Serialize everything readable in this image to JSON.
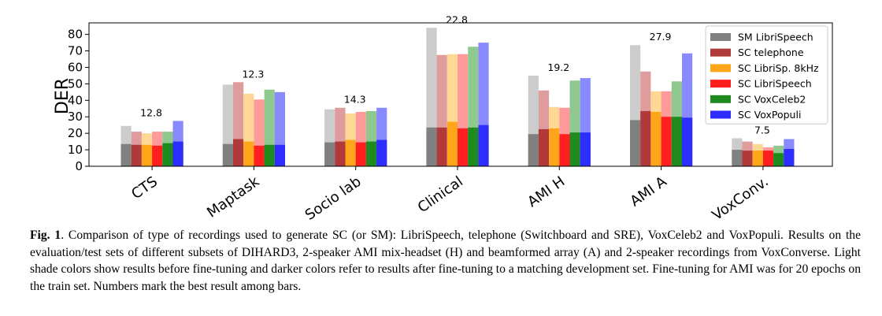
{
  "chart_data": {
    "type": "bar",
    "ylabel": "DER",
    "ylim": [
      0,
      87
    ],
    "yticks": [
      0,
      10,
      20,
      30,
      40,
      50,
      60,
      70,
      80
    ],
    "grid": false,
    "legend_position": "top-right",
    "categories": [
      "CTS",
      "Maptask",
      "Socio lab",
      "Clinical",
      "AMI H",
      "AMI A",
      "VoxConv."
    ],
    "series": [
      {
        "name": "SM LibriSpeech",
        "color": "#808080",
        "light_color": "#cccccc",
        "before": [
          24.5,
          49.5,
          34.5,
          84,
          55,
          73.5,
          17
        ],
        "after": [
          13.5,
          13.5,
          14.5,
          23.5,
          19.5,
          28,
          10
        ]
      },
      {
        "name": "SC telephone",
        "color": "#b03a3a",
        "light_color": "#de9c9c",
        "before": [
          21,
          51,
          35.5,
          67.5,
          46,
          57.5,
          15
        ],
        "after": [
          13,
          16.5,
          15,
          23.5,
          22.5,
          33.5,
          9.5
        ]
      },
      {
        "name": "SC LibriSp. 8kHz",
        "color": "#ffa51a",
        "light_color": "#ffd896",
        "before": [
          20,
          44,
          32,
          68,
          36,
          45.5,
          13.5
        ],
        "after": [
          13,
          15,
          16,
          27,
          23,
          33,
          9.5
        ]
      },
      {
        "name": "SC LibriSpeech",
        "color": "#ff1f1f",
        "light_color": "#ff9a9a",
        "before": [
          21,
          40.5,
          33,
          68,
          35.5,
          45.5,
          11.5
        ],
        "after": [
          12.5,
          12.5,
          14.5,
          23,
          19.5,
          30,
          9.5
        ]
      },
      {
        "name": "SC VoxCeleb2",
        "color": "#1f8b1f",
        "light_color": "#90c990",
        "before": [
          21,
          46.5,
          33.5,
          72.5,
          52,
          51.5,
          12.5
        ],
        "after": [
          14,
          13,
          15,
          23.5,
          20.5,
          30,
          8
        ]
      },
      {
        "name": "SC VoxPopuli",
        "color": "#2d2dff",
        "light_color": "#8a8aff",
        "before": [
          27.5,
          45,
          35.5,
          75,
          53.5,
          68.5,
          16.5
        ],
        "after": [
          15,
          13,
          16,
          25,
          20.5,
          29.5,
          10.5
        ]
      }
    ],
    "annotations": [
      {
        "category": "CTS",
        "text": "12.8",
        "value": 12.8
      },
      {
        "category": "Maptask",
        "text": "12.3",
        "value": 12.3
      },
      {
        "category": "Socio lab",
        "text": "14.3",
        "value": 14.3
      },
      {
        "category": "Clinical",
        "text": "22.8",
        "value": 22.8
      },
      {
        "category": "AMI H",
        "text": "19.2",
        "value": 19.2
      },
      {
        "category": "AMI A",
        "text": "27.9",
        "value": 27.9
      },
      {
        "category": "VoxConv.",
        "text": "7.5",
        "value": 7.5
      }
    ]
  },
  "caption": {
    "label": "Fig. 1",
    "text": ". Comparison of type of recordings used to generate SC (or SM): LibriSpeech, telephone (Switchboard and SRE), VoxCeleb2 and VoxPopuli. Results on the evaluation/test sets of different subsets of DIHARD3, 2-speaker AMI mix-headset (H) and beamformed array (A) and 2-speaker recordings from VoxConverse. Light shade colors show results before fine-tuning and darker colors refer to results after fine-tuning to a matching development set. Fine-tuning for AMI was for 20 epochs on the train set. Numbers mark the best result among bars."
  }
}
